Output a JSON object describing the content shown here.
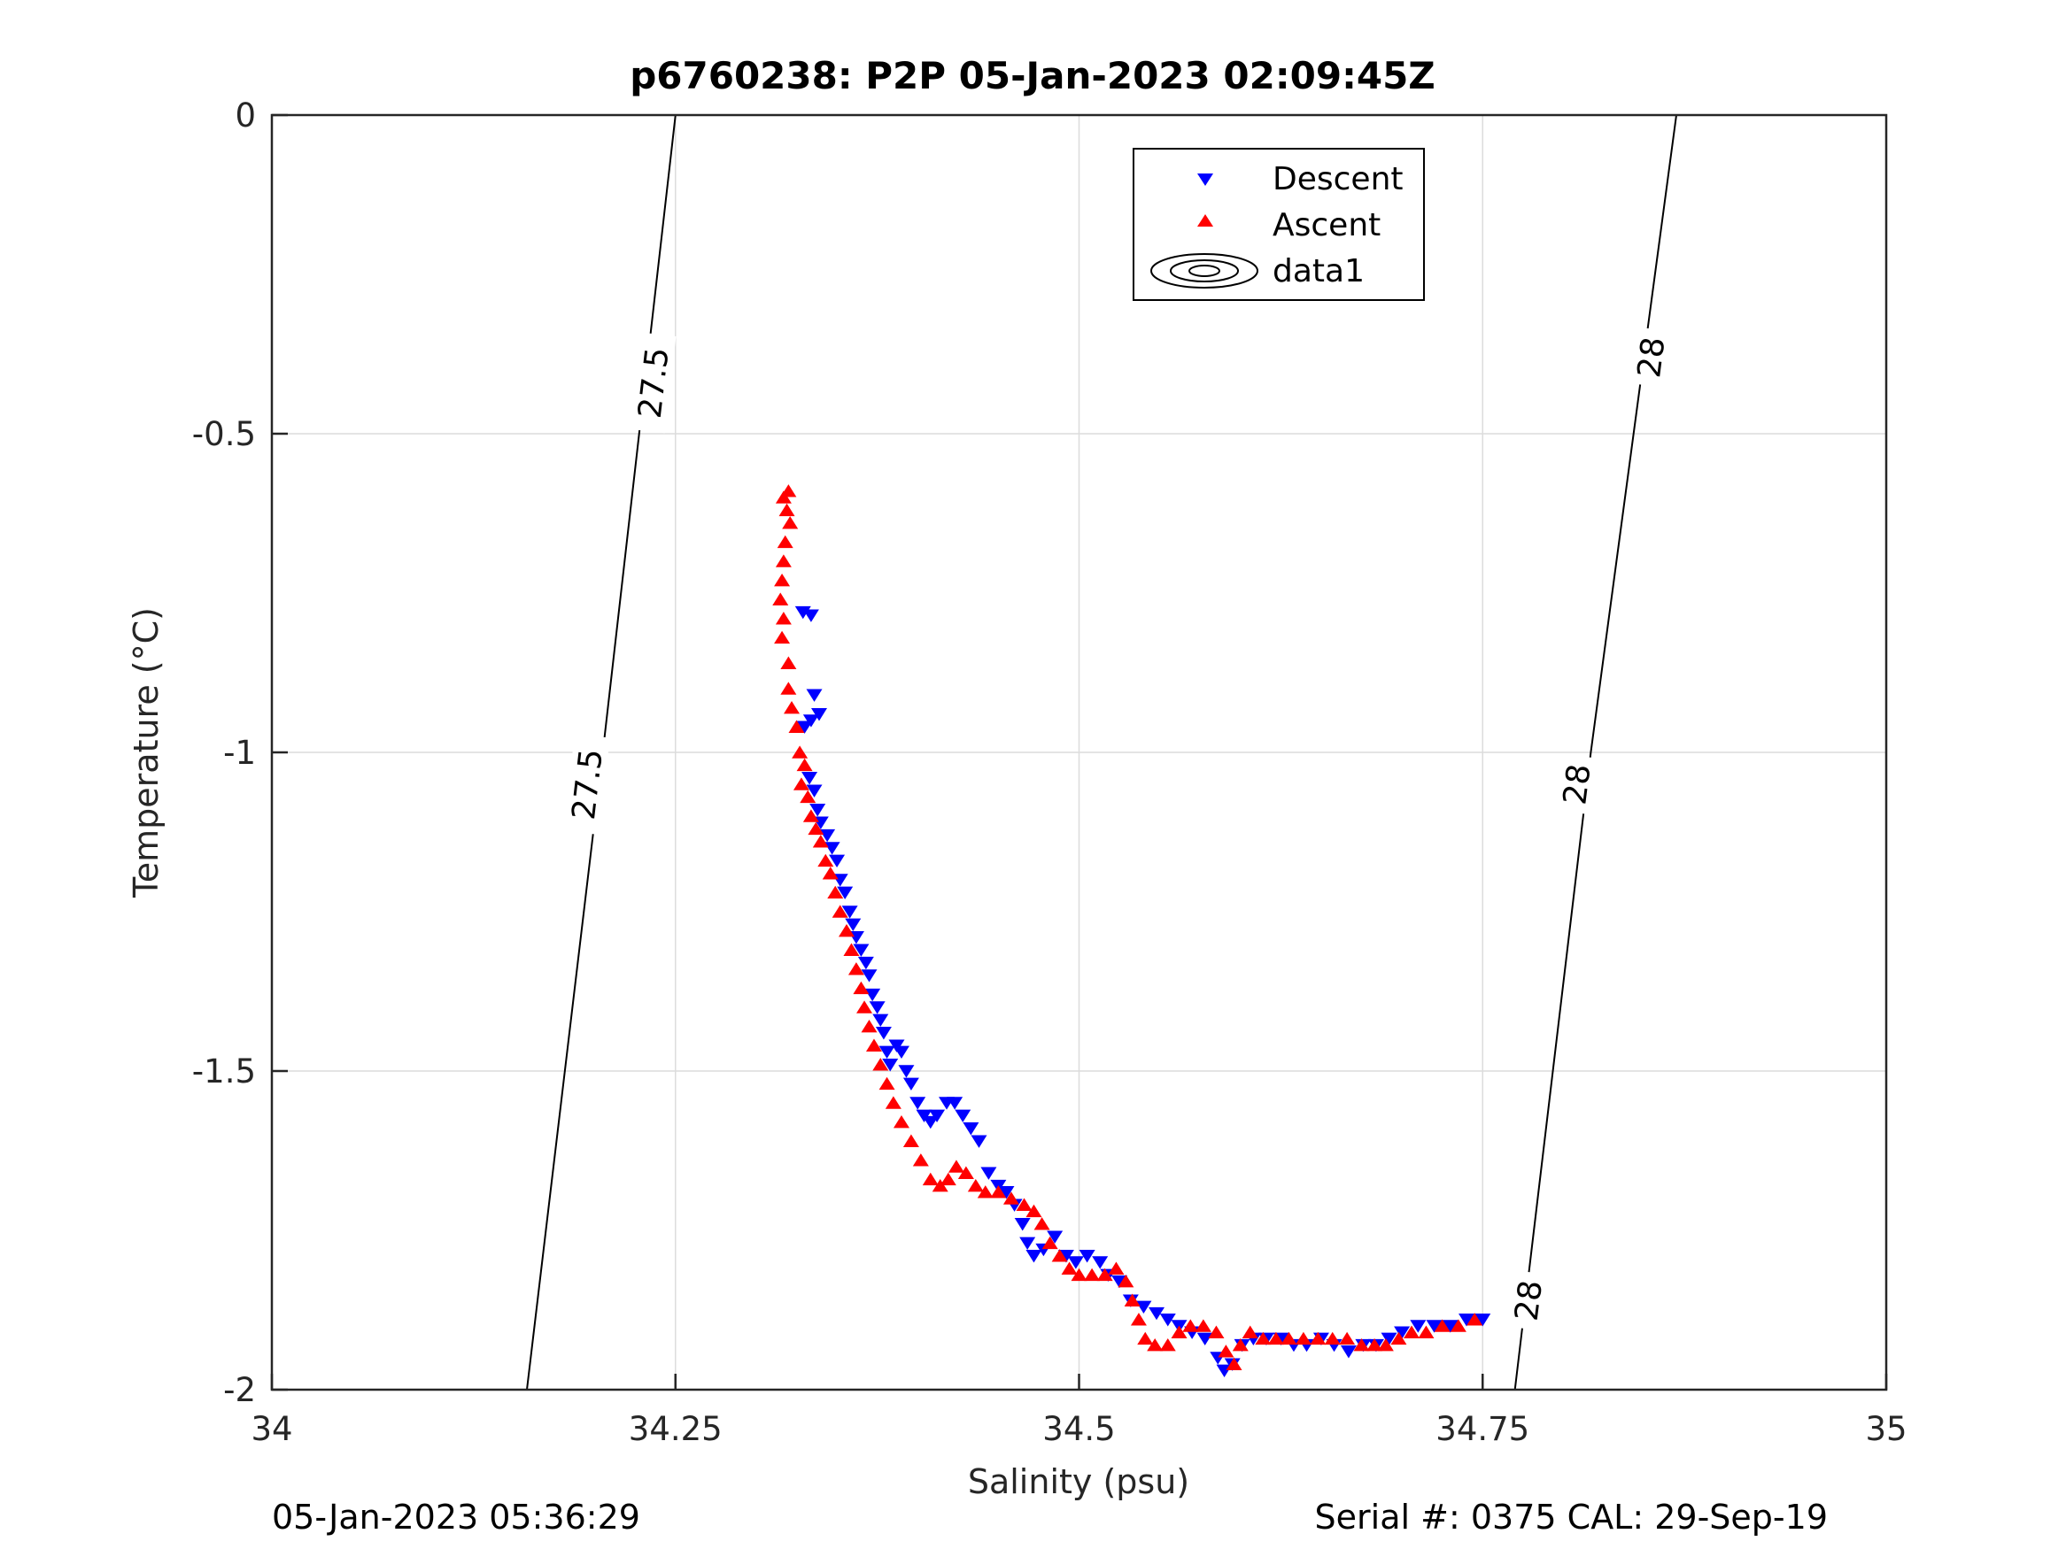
{
  "chart_data": {
    "type": "scatter",
    "title": "p6760238: P2P 05-Jan-2023 02:09:45Z",
    "xlabel": "Salinity (psu)",
    "ylabel": "Temperature (°C)",
    "xlim": [
      34,
      35
    ],
    "ylim": [
      -2,
      0
    ],
    "xticks": [
      34,
      34.25,
      34.5,
      34.75,
      35
    ],
    "xtick_labels": [
      "34",
      "34.25",
      "34.5",
      "34.75",
      "35"
    ],
    "yticks": [
      0,
      -0.5,
      -1,
      -1.5,
      -2
    ],
    "ytick_labels": [
      "0",
      "-0.5",
      "-1",
      "-1.5",
      "-2"
    ],
    "grid": true,
    "legend_position": "top-right",
    "legend": [
      "Descent",
      "Ascent",
      "data1"
    ],
    "series": [
      {
        "name": "Descent",
        "marker": "triangle-down",
        "color": "#0000ff",
        "points": [
          [
            34.329,
            -0.78
          ],
          [
            34.334,
            -0.785
          ],
          [
            34.336,
            -0.91
          ],
          [
            34.339,
            -0.94
          ],
          [
            34.334,
            -0.95
          ],
          [
            34.33,
            -0.96
          ],
          [
            34.333,
            -1.04
          ],
          [
            34.336,
            -1.06
          ],
          [
            34.338,
            -1.09
          ],
          [
            34.34,
            -1.11
          ],
          [
            34.344,
            -1.13
          ],
          [
            34.347,
            -1.15
          ],
          [
            34.35,
            -1.17
          ],
          [
            34.352,
            -1.2
          ],
          [
            34.355,
            -1.22
          ],
          [
            34.358,
            -1.25
          ],
          [
            34.36,
            -1.27
          ],
          [
            34.362,
            -1.29
          ],
          [
            34.365,
            -1.31
          ],
          [
            34.368,
            -1.33
          ],
          [
            34.37,
            -1.35
          ],
          [
            34.372,
            -1.38
          ],
          [
            34.375,
            -1.4
          ],
          [
            34.377,
            -1.42
          ],
          [
            34.379,
            -1.44
          ],
          [
            34.381,
            -1.47
          ],
          [
            34.383,
            -1.49
          ],
          [
            34.387,
            -1.46
          ],
          [
            34.39,
            -1.47
          ],
          [
            34.393,
            -1.5
          ],
          [
            34.396,
            -1.52
          ],
          [
            34.4,
            -1.55
          ],
          [
            34.404,
            -1.57
          ],
          [
            34.408,
            -1.58
          ],
          [
            34.412,
            -1.57
          ],
          [
            34.418,
            -1.55
          ],
          [
            34.423,
            -1.55
          ],
          [
            34.428,
            -1.57
          ],
          [
            34.433,
            -1.59
          ],
          [
            34.438,
            -1.61
          ],
          [
            34.444,
            -1.66
          ],
          [
            34.45,
            -1.68
          ],
          [
            34.455,
            -1.69
          ],
          [
            34.46,
            -1.71
          ],
          [
            34.465,
            -1.74
          ],
          [
            34.468,
            -1.77
          ],
          [
            34.472,
            -1.79
          ],
          [
            34.478,
            -1.78
          ],
          [
            34.485,
            -1.76
          ],
          [
            34.492,
            -1.79
          ],
          [
            34.498,
            -1.8
          ],
          [
            34.505,
            -1.79
          ],
          [
            34.513,
            -1.8
          ],
          [
            34.518,
            -1.82
          ],
          [
            34.525,
            -1.83
          ],
          [
            34.532,
            -1.86
          ],
          [
            34.54,
            -1.87
          ],
          [
            34.548,
            -1.88
          ],
          [
            34.555,
            -1.89
          ],
          [
            34.562,
            -1.9
          ],
          [
            34.57,
            -1.91
          ],
          [
            34.578,
            -1.92
          ],
          [
            34.586,
            -1.95
          ],
          [
            34.59,
            -1.97
          ],
          [
            34.595,
            -1.96
          ],
          [
            34.601,
            -1.93
          ],
          [
            34.608,
            -1.92
          ],
          [
            34.616,
            -1.92
          ],
          [
            34.625,
            -1.92
          ],
          [
            34.633,
            -1.93
          ],
          [
            34.641,
            -1.93
          ],
          [
            34.65,
            -1.92
          ],
          [
            34.658,
            -1.93
          ],
          [
            34.667,
            -1.94
          ],
          [
            34.676,
            -1.93
          ],
          [
            34.684,
            -1.93
          ],
          [
            34.692,
            -1.92
          ],
          [
            34.7,
            -1.91
          ],
          [
            34.71,
            -1.9
          ],
          [
            34.72,
            -1.9
          ],
          [
            34.73,
            -1.9
          ],
          [
            34.74,
            -1.89
          ],
          [
            34.75,
            -1.89
          ]
        ]
      },
      {
        "name": "Ascent",
        "marker": "triangle-up",
        "color": "#ff0000",
        "points": [
          [
            34.32,
            -0.59
          ],
          [
            34.317,
            -0.6
          ],
          [
            34.319,
            -0.62
          ],
          [
            34.321,
            -0.64
          ],
          [
            34.318,
            -0.67
          ],
          [
            34.317,
            -0.7
          ],
          [
            34.316,
            -0.73
          ],
          [
            34.315,
            -0.76
          ],
          [
            34.317,
            -0.79
          ],
          [
            34.316,
            -0.82
          ],
          [
            34.32,
            -0.86
          ],
          [
            34.32,
            -0.9
          ],
          [
            34.322,
            -0.93
          ],
          [
            34.325,
            -0.96
          ],
          [
            34.327,
            -1.0
          ],
          [
            34.33,
            -1.02
          ],
          [
            34.328,
            -1.05
          ],
          [
            34.332,
            -1.07
          ],
          [
            34.334,
            -1.1
          ],
          [
            34.337,
            -1.12
          ],
          [
            34.34,
            -1.14
          ],
          [
            34.343,
            -1.17
          ],
          [
            34.346,
            -1.19
          ],
          [
            34.349,
            -1.22
          ],
          [
            34.352,
            -1.25
          ],
          [
            34.356,
            -1.28
          ],
          [
            34.359,
            -1.31
          ],
          [
            34.362,
            -1.34
          ],
          [
            34.365,
            -1.37
          ],
          [
            34.367,
            -1.4
          ],
          [
            34.37,
            -1.43
          ],
          [
            34.373,
            -1.46
          ],
          [
            34.377,
            -1.49
          ],
          [
            34.381,
            -1.52
          ],
          [
            34.385,
            -1.55
          ],
          [
            34.39,
            -1.58
          ],
          [
            34.396,
            -1.61
          ],
          [
            34.402,
            -1.64
          ],
          [
            34.408,
            -1.67
          ],
          [
            34.414,
            -1.68
          ],
          [
            34.419,
            -1.67
          ],
          [
            34.424,
            -1.65
          ],
          [
            34.43,
            -1.66
          ],
          [
            34.436,
            -1.68
          ],
          [
            34.442,
            -1.69
          ],
          [
            34.45,
            -1.69
          ],
          [
            34.458,
            -1.7
          ],
          [
            34.466,
            -1.71
          ],
          [
            34.472,
            -1.72
          ],
          [
            34.477,
            -1.74
          ],
          [
            34.482,
            -1.77
          ],
          [
            34.488,
            -1.79
          ],
          [
            34.494,
            -1.81
          ],
          [
            34.5,
            -1.82
          ],
          [
            34.508,
            -1.82
          ],
          [
            34.516,
            -1.82
          ],
          [
            34.523,
            -1.81
          ],
          [
            34.529,
            -1.83
          ],
          [
            34.533,
            -1.86
          ],
          [
            34.537,
            -1.89
          ],
          [
            34.541,
            -1.92
          ],
          [
            34.547,
            -1.93
          ],
          [
            34.555,
            -1.93
          ],
          [
            34.562,
            -1.91
          ],
          [
            34.569,
            -1.9
          ],
          [
            34.577,
            -1.9
          ],
          [
            34.585,
            -1.91
          ],
          [
            34.591,
            -1.94
          ],
          [
            34.596,
            -1.96
          ],
          [
            34.6,
            -1.93
          ],
          [
            34.606,
            -1.91
          ],
          [
            34.614,
            -1.92
          ],
          [
            34.622,
            -1.92
          ],
          [
            34.63,
            -1.92
          ],
          [
            34.639,
            -1.92
          ],
          [
            34.648,
            -1.92
          ],
          [
            34.657,
            -1.92
          ],
          [
            34.666,
            -1.92
          ],
          [
            34.675,
            -1.93
          ],
          [
            34.683,
            -1.93
          ],
          [
            34.69,
            -1.93
          ],
          [
            34.698,
            -1.92
          ],
          [
            34.706,
            -1.91
          ],
          [
            34.715,
            -1.91
          ],
          [
            34.725,
            -1.9
          ],
          [
            34.735,
            -1.9
          ],
          [
            34.745,
            -1.89
          ]
        ]
      }
    ],
    "contours": [
      {
        "name": "data1",
        "level_label": "27.5",
        "line": [
          [
            34.158,
            -2.0
          ],
          [
            34.205,
            -1.0
          ],
          [
            34.25,
            0.0
          ]
        ],
        "labels_at": [
          [
            34.195,
            -1.05
          ],
          [
            34.236,
            -0.42
          ]
        ]
      },
      {
        "name": "data1",
        "level_label": "28",
        "line": [
          [
            34.77,
            -2.0
          ],
          [
            34.817,
            -1.0
          ],
          [
            34.87,
            0.0
          ]
        ],
        "labels_at": [
          [
            34.778,
            -1.86
          ],
          [
            34.808,
            -1.05
          ],
          [
            34.854,
            -0.38
          ]
        ]
      }
    ]
  },
  "footer": {
    "left": "05-Jan-2023 05:36:29",
    "right": "Serial #: 0375  CAL: 29-Sep-19"
  },
  "colors": {
    "descent": "#0000ff",
    "ascent": "#ff0000",
    "grid": "#dcdcdc",
    "axis": "#262626"
  }
}
